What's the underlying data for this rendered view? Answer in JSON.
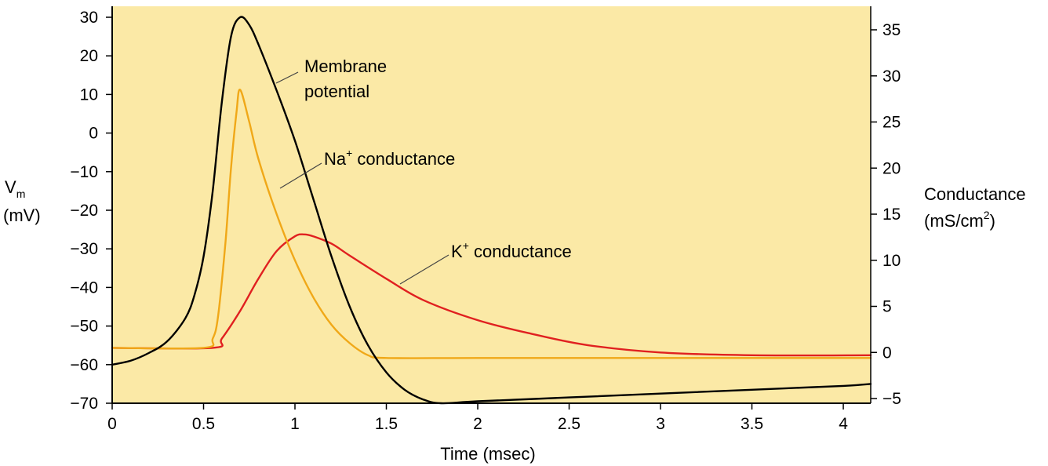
{
  "chart_data": {
    "type": "line",
    "title": "",
    "xlabel": "Time (msec)",
    "ylabel_left": [
      "V",
      "m",
      "(mV)"
    ],
    "ylabel_right": [
      "Conductance",
      "(mS/cm",
      "2",
      ")"
    ],
    "xlim": [
      0,
      4.15
    ],
    "ylim_left": [
      -70,
      30
    ],
    "ylim_right": [
      -5,
      37
    ],
    "x_ticks": [
      0,
      0.5,
      1,
      1.5,
      2,
      2.5,
      3,
      3.5,
      4
    ],
    "x_tick_labels": [
      "0",
      "0.5",
      "1",
      "1.5",
      "2",
      "2.5",
      "3",
      "3.5",
      "4"
    ],
    "y_left_ticks": [
      30,
      20,
      10,
      0,
      -10,
      -20,
      -30,
      -40,
      -50,
      -60,
      -70
    ],
    "y_left_tick_labels": [
      "30",
      "20",
      "10",
      "0",
      "−10",
      "−20",
      "−30",
      "−40",
      "−50",
      "−60",
      "−70"
    ],
    "y_right_ticks": [
      35,
      30,
      25,
      20,
      15,
      10,
      5,
      0,
      -5
    ],
    "y_right_tick_labels": [
      "35",
      "30",
      "25",
      "20",
      "15",
      "10",
      "5",
      "0",
      "−5"
    ],
    "background_color": "#fbe9a6",
    "series": [
      {
        "name": "Membrane potential",
        "axis": "left",
        "color": "#000000",
        "x": [
          0,
          0.1,
          0.2,
          0.3,
          0.4,
          0.45,
          0.5,
          0.55,
          0.6,
          0.65,
          0.7,
          0.75,
          0.8,
          0.9,
          1.0,
          1.1,
          1.2,
          1.3,
          1.4,
          1.5,
          1.6,
          1.7,
          1.8,
          2.0,
          2.5,
          3.0,
          3.5,
          4.0,
          4.15
        ],
        "y": [
          -60,
          -59,
          -57,
          -54,
          -48,
          -42,
          -32,
          -15,
          8,
          25,
          30,
          28,
          23,
          11,
          -2,
          -17,
          -32,
          -45,
          -55,
          -62,
          -66.5,
          -69,
          -70,
          -69.5,
          -68.5,
          -67.5,
          -66.5,
          -65.5,
          -65
        ]
      },
      {
        "name": "Na+ conductance",
        "axis": "right",
        "color": "#f0a818",
        "x": [
          0,
          0.5,
          0.55,
          0.58,
          0.62,
          0.65,
          0.68,
          0.7,
          0.75,
          0.8,
          0.9,
          1.0,
          1.1,
          1.2,
          1.3,
          1.4,
          1.5,
          2.0,
          3.0,
          4.15
        ],
        "y": [
          0.5,
          0.5,
          1.5,
          4,
          12,
          20,
          26,
          28.5,
          25,
          21,
          15,
          10,
          6,
          3,
          1,
          -0.3,
          -0.6,
          -0.6,
          -0.6,
          -0.6
        ]
      },
      {
        "name": "K+ conductance",
        "axis": "right",
        "color": "#e02020",
        "x": [
          0,
          0.55,
          0.6,
          0.7,
          0.8,
          0.9,
          1.0,
          1.05,
          1.1,
          1.2,
          1.3,
          1.5,
          1.7,
          2.0,
          2.3,
          2.6,
          3.0,
          3.5,
          4.15
        ],
        "y": [
          0.5,
          0.5,
          1.5,
          4.5,
          8,
          11,
          12.6,
          12.8,
          12.6,
          11.8,
          10.5,
          8,
          5.7,
          3.5,
          2,
          0.8,
          0,
          -0.3,
          -0.3
        ]
      }
    ],
    "annotations": [
      {
        "name": "Membrane potential",
        "lines": [
          "Membrane",
          "potential"
        ]
      },
      {
        "name": "Na+ conductance",
        "main": "Na",
        "sup": "+",
        "rest": " conductance"
      },
      {
        "name": "K+ conductance",
        "main": "K",
        "sup": "+",
        "rest": " conductance"
      }
    ]
  }
}
